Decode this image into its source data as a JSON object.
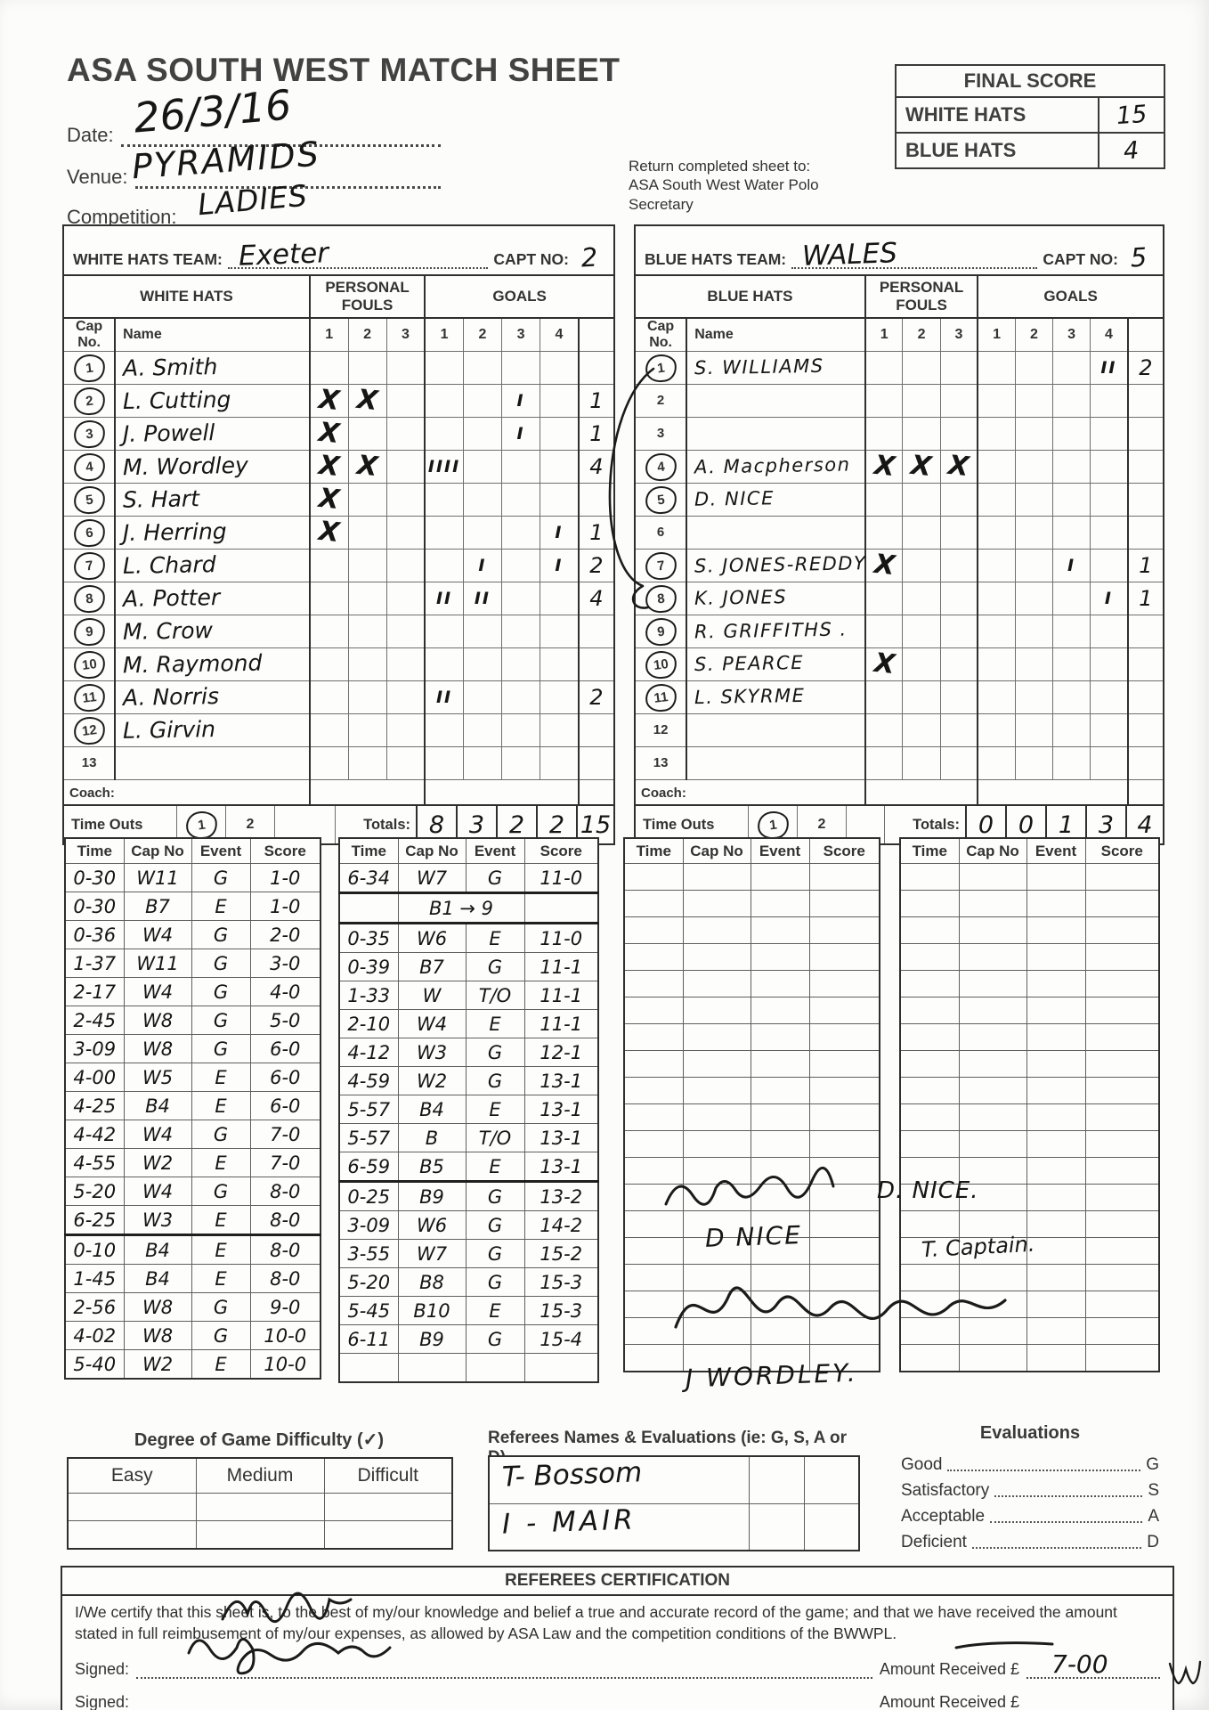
{
  "header": {
    "title": "ASA SOUTH WEST MATCH SHEET",
    "date_label": "Date:",
    "date_value": "26/3/16",
    "venue_label": "Venue:",
    "venue_value": "PYRAMIDS",
    "competition_label": "Competition:",
    "competition_value": "LADIES",
    "return_note_lines": [
      "Return completed sheet to:",
      "ASA South West Water Polo",
      "Secretary"
    ]
  },
  "final_score": {
    "title": "FINAL SCORE",
    "white_label": "WHITE HATS",
    "white_value": "15",
    "blue_label": "BLUE HATS",
    "blue_value": "4"
  },
  "teams": [
    {
      "id": "white",
      "bar_label": "WHITE HATS TEAM:",
      "team_name": "Exeter",
      "capt_label": "CAPT NO:",
      "capt_no": "2",
      "group_header": "WHITE HATS",
      "fouls_header": "PERSONAL FOULS",
      "goals_header": "GOALS",
      "cap_header": "Cap No.",
      "name_header": "Name",
      "foul_cols": [
        "1",
        "2",
        "3"
      ],
      "goal_cols": [
        "1",
        "2",
        "3",
        "4"
      ],
      "players": [
        {
          "cap": "1",
          "circled": true,
          "name": "A. Smith",
          "fouls": [
            "",
            "",
            ""
          ],
          "goals": [
            "",
            "",
            "",
            ""
          ],
          "total": ""
        },
        {
          "cap": "2",
          "circled": true,
          "name": "L. Cutting",
          "fouls": [
            "X",
            "X",
            ""
          ],
          "goals": [
            "",
            "",
            "I",
            ""
          ],
          "total": "1"
        },
        {
          "cap": "3",
          "circled": true,
          "name": "J. Powell",
          "fouls": [
            "X",
            "",
            ""
          ],
          "goals": [
            "",
            "",
            "I",
            ""
          ],
          "total": "1"
        },
        {
          "cap": "4",
          "circled": true,
          "name": "M. Wordley",
          "fouls": [
            "X",
            "X",
            ""
          ],
          "goals": [
            "IIII",
            "",
            "",
            ""
          ],
          "total": "4"
        },
        {
          "cap": "5",
          "circled": true,
          "name": "S. Hart",
          "fouls": [
            "X",
            "",
            ""
          ],
          "goals": [
            "",
            "",
            "",
            ""
          ],
          "total": ""
        },
        {
          "cap": "6",
          "circled": true,
          "name": "J. Herring",
          "fouls": [
            "X",
            "",
            ""
          ],
          "goals": [
            "",
            "",
            "",
            "I"
          ],
          "total": "1"
        },
        {
          "cap": "7",
          "circled": true,
          "name": "L. Chard",
          "fouls": [
            "",
            "",
            ""
          ],
          "goals": [
            "",
            "I",
            "",
            "I"
          ],
          "total": "2"
        },
        {
          "cap": "8",
          "circled": true,
          "name": "A. Potter",
          "fouls": [
            "",
            "",
            ""
          ],
          "goals": [
            "II",
            "II",
            "",
            ""
          ],
          "total": "4"
        },
        {
          "cap": "9",
          "circled": true,
          "name": "M. Crow",
          "fouls": [
            "",
            "",
            ""
          ],
          "goals": [
            "",
            "",
            "",
            ""
          ],
          "total": ""
        },
        {
          "cap": "10",
          "circled": true,
          "name": "M. Raymond",
          "fouls": [
            "",
            "",
            ""
          ],
          "goals": [
            "",
            "",
            "",
            ""
          ],
          "total": ""
        },
        {
          "cap": "11",
          "circled": true,
          "name": "A. Norris",
          "fouls": [
            "",
            "",
            ""
          ],
          "goals": [
            "II",
            "",
            "",
            ""
          ],
          "total": "2"
        },
        {
          "cap": "12",
          "circled": true,
          "name": "L. Girvin",
          "fouls": [
            "",
            "",
            ""
          ],
          "goals": [
            "",
            "",
            "",
            ""
          ],
          "total": ""
        },
        {
          "cap": "13",
          "circled": false,
          "name": "",
          "fouls": [
            "",
            "",
            ""
          ],
          "goals": [
            "",
            "",
            "",
            ""
          ],
          "total": ""
        }
      ],
      "coach_label": "Coach:",
      "coach_name": "",
      "timeouts_label": "Time Outs",
      "timeout_options": [
        "1",
        "2"
      ],
      "timeouts_used": "1",
      "totals_label": "Totals:",
      "goal_totals": [
        "8",
        "3",
        "2",
        "2"
      ],
      "grand_total": "15"
    },
    {
      "id": "blue",
      "bar_label": "BLUE HATS TEAM:",
      "team_name": "WALES",
      "capt_label": "CAPT NO:",
      "capt_no": "5",
      "group_header": "BLUE HATS",
      "fouls_header": "PERSONAL FOULS",
      "goals_header": "GOALS",
      "cap_header": "Cap No.",
      "name_header": "Name",
      "foul_cols": [
        "1",
        "2",
        "3"
      ],
      "goal_cols": [
        "1",
        "2",
        "3",
        "4"
      ],
      "players": [
        {
          "cap": "1",
          "circled": true,
          "name": "S. WILLIAMS",
          "fouls": [
            "",
            "",
            ""
          ],
          "goals": [
            "",
            "",
            "",
            "II"
          ],
          "total": "2"
        },
        {
          "cap": "2",
          "circled": false,
          "name": "",
          "fouls": [
            "",
            "",
            ""
          ],
          "goals": [
            "",
            "",
            "",
            ""
          ],
          "total": ""
        },
        {
          "cap": "3",
          "circled": false,
          "name": "",
          "fouls": [
            "",
            "",
            ""
          ],
          "goals": [
            "",
            "",
            "",
            ""
          ],
          "total": ""
        },
        {
          "cap": "4",
          "circled": true,
          "name": "A. Macpherson",
          "fouls": [
            "X",
            "X",
            "X"
          ],
          "goals": [
            "",
            "",
            "",
            ""
          ],
          "total": ""
        },
        {
          "cap": "5",
          "circled": true,
          "name": "D. NICE",
          "fouls": [
            "",
            "",
            ""
          ],
          "goals": [
            "",
            "",
            "",
            ""
          ],
          "total": ""
        },
        {
          "cap": "6",
          "circled": false,
          "name": "",
          "fouls": [
            "",
            "",
            ""
          ],
          "goals": [
            "",
            "",
            "",
            ""
          ],
          "total": ""
        },
        {
          "cap": "7",
          "circled": true,
          "name": "S. JONES-REDDY",
          "fouls": [
            "X",
            "",
            ""
          ],
          "goals": [
            "",
            "",
            "I",
            ""
          ],
          "total": "1"
        },
        {
          "cap": "8",
          "circled": true,
          "name": "K. JONES",
          "fouls": [
            "",
            "",
            ""
          ],
          "goals": [
            "",
            "",
            "",
            "I"
          ],
          "total": "1"
        },
        {
          "cap": "9",
          "circled": true,
          "name": "R. GRIFFITHS .",
          "fouls": [
            "",
            "",
            ""
          ],
          "goals": [
            "",
            "",
            "",
            ""
          ],
          "total": ""
        },
        {
          "cap": "10",
          "circled": true,
          "name": "S. PEARCE",
          "fouls": [
            "X",
            "",
            ""
          ],
          "goals": [
            "",
            "",
            "",
            ""
          ],
          "total": ""
        },
        {
          "cap": "11",
          "circled": true,
          "name": "L. SKYRME",
          "fouls": [
            "",
            "",
            ""
          ],
          "goals": [
            "",
            "",
            "",
            ""
          ],
          "total": ""
        },
        {
          "cap": "12",
          "circled": false,
          "name": "",
          "fouls": [
            "",
            "",
            ""
          ],
          "goals": [
            "",
            "",
            "",
            ""
          ],
          "total": ""
        },
        {
          "cap": "13",
          "circled": false,
          "name": "",
          "fouls": [
            "",
            "",
            ""
          ],
          "goals": [
            "",
            "",
            "",
            ""
          ],
          "total": ""
        }
      ],
      "coach_label": "Coach:",
      "coach_name": "",
      "timeouts_label": "Time Outs",
      "timeout_options": [
        "1",
        "2"
      ],
      "timeouts_used": "1",
      "totals_label": "Totals:",
      "goal_totals": [
        "0",
        "0",
        "1",
        "3"
      ],
      "grand_total": "4"
    }
  ],
  "logs": {
    "headers": [
      "Time",
      "Cap No",
      "Event",
      "Score"
    ],
    "tables": [
      {
        "rows": [
          {
            "time": "0-30",
            "cap": "W11",
            "event": "G",
            "score": "1-0"
          },
          {
            "time": "0-30",
            "cap": "B7",
            "event": "E",
            "score": "1-0"
          },
          {
            "time": "0-36",
            "cap": "W4",
            "event": "G",
            "score": "2-0"
          },
          {
            "time": "1-37",
            "cap": "W11",
            "event": "G",
            "score": "3-0"
          },
          {
            "time": "2-17",
            "cap": "W4",
            "event": "G",
            "score": "4-0"
          },
          {
            "time": "2-45",
            "cap": "W8",
            "event": "G",
            "score": "5-0"
          },
          {
            "time": "3-09",
            "cap": "W8",
            "event": "G",
            "score": "6-0"
          },
          {
            "time": "4-00",
            "cap": "W5",
            "event": "E",
            "score": "6-0"
          },
          {
            "time": "4-25",
            "cap": "B4",
            "event": "E",
            "score": "6-0"
          },
          {
            "time": "4-42",
            "cap": "W4",
            "event": "G",
            "score": "7-0"
          },
          {
            "time": "4-55",
            "cap": "W2",
            "event": "E",
            "score": "7-0"
          },
          {
            "time": "5-20",
            "cap": "W4",
            "event": "G",
            "score": "8-0"
          },
          {
            "time": "6-25",
            "cap": "W3",
            "event": "E",
            "score": "8-0",
            "thick": true
          },
          {
            "time": "0-10",
            "cap": "B4",
            "event": "E",
            "score": "8-0"
          },
          {
            "time": "1-45",
            "cap": "B4",
            "event": "E",
            "score": "8-0"
          },
          {
            "time": "2-56",
            "cap": "W8",
            "event": "G",
            "score": "9-0"
          },
          {
            "time": "4-02",
            "cap": "W8",
            "event": "G",
            "score": "10-0"
          },
          {
            "time": "5-40",
            "cap": "W2",
            "event": "E",
            "score": "10-0"
          }
        ]
      },
      {
        "rows": [
          {
            "time": "6-34",
            "cap": "W7",
            "event": "G",
            "score": "11-0",
            "thick": true
          },
          {
            "note": "B1 → 9",
            "thick": true
          },
          {
            "time": "0-35",
            "cap": "W6",
            "event": "E",
            "score": "11-0"
          },
          {
            "time": "0-39",
            "cap": "B7",
            "event": "G",
            "score": "11-1"
          },
          {
            "time": "1-33",
            "cap": "W",
            "event": "T/O",
            "score": "11-1"
          },
          {
            "time": "2-10",
            "cap": "W4",
            "event": "E",
            "score": "11-1"
          },
          {
            "time": "4-12",
            "cap": "W3",
            "event": "G",
            "score": "12-1"
          },
          {
            "time": "4-59",
            "cap": "W2",
            "event": "G",
            "score": "13-1"
          },
          {
            "time": "5-57",
            "cap": "B4",
            "event": "E",
            "score": "13-1"
          },
          {
            "time": "5-57",
            "cap": "B",
            "event": "T/O",
            "score": "13-1"
          },
          {
            "time": "6-59",
            "cap": "B5",
            "event": "E",
            "score": "13-1",
            "thick": true
          },
          {
            "time": "0-25",
            "cap": "B9",
            "event": "G",
            "score": "13-2"
          },
          {
            "time": "3-09",
            "cap": "W6",
            "event": "G",
            "score": "14-2"
          },
          {
            "time": "3-55",
            "cap": "W7",
            "event": "G",
            "score": "15-2"
          },
          {
            "time": "5-20",
            "cap": "B8",
            "event": "G",
            "score": "15-3"
          },
          {
            "time": "5-45",
            "cap": "B10",
            "event": "E",
            "score": "15-3"
          },
          {
            "time": "6-11",
            "cap": "B9",
            "event": "G",
            "score": "15-4"
          },
          {
            "time": "",
            "cap": "",
            "event": "",
            "score": ""
          }
        ]
      },
      {
        "rows": []
      },
      {
        "rows": []
      }
    ]
  },
  "annotations": {
    "sig_right_name": "D. NICE.",
    "sig_left_name": "D NICE",
    "sig_captain": "T. Captain.",
    "sig_printed": "J WORDLEY."
  },
  "difficulty": {
    "heading": "Degree of Game Difficulty (✓)",
    "options": [
      "Easy",
      "Medium",
      "Difficult"
    ]
  },
  "referees": {
    "heading": "Referees Names & Evaluations (ie: G, S, A or D)",
    "names": [
      "T- Bossom",
      "I - MAIR"
    ]
  },
  "evaluations": {
    "heading": "Evaluations",
    "items": [
      {
        "label": "Good",
        "code": "G"
      },
      {
        "label": "Satisfactory",
        "code": "S"
      },
      {
        "label": "Acceptable",
        "code": "A"
      },
      {
        "label": "Deficient",
        "code": "D"
      }
    ]
  },
  "certification": {
    "title": "REFEREES CERTIFICATION",
    "body": "I/We certify that this sheet is, to the best of my/our knowledge and belief a true and accurate record of the game; and that we have received the amount stated in full reimbusement of my/our expenses, as allowed by ASA Law and the competition conditions of the BWWPL.",
    "signed_label": "Signed:",
    "amount_label": "Amount Received £",
    "amount_1": "7-00",
    "amount_2": ""
  }
}
